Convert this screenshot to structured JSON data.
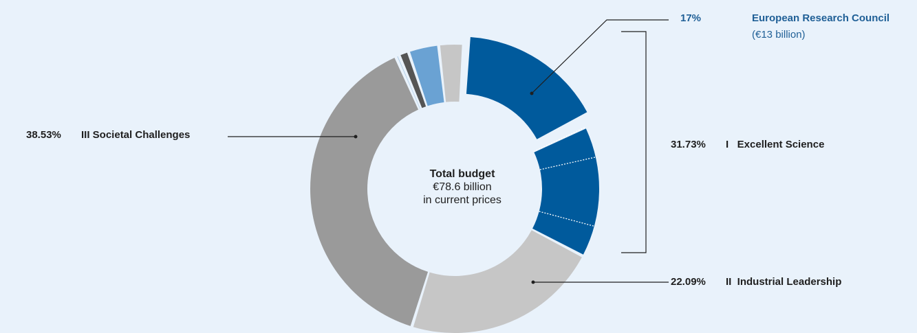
{
  "colors": {
    "background": "#e9f2fb",
    "excellent_science": "#005a9c",
    "industrial_leadership": "#c6c6c6",
    "societal_challenges": "#9a9a9a",
    "light_blue": "#6aa2d3",
    "pale_blue": "#a9c9e6",
    "dark_gray": "#555555",
    "callout_blue": "#1f5f96"
  },
  "center": {
    "title": "Total budget",
    "amount": "€78.6 billion",
    "note": "in current prices"
  },
  "labels": {
    "erc": {
      "pct": "17%",
      "name": "European Research Council",
      "sub": "(€13 billion)"
    },
    "excellent": {
      "pct": "31.73%",
      "name": "I   Excellent Science"
    },
    "industrial": {
      "pct": "22.09%",
      "name": "II  Industrial Leadership"
    },
    "societal": {
      "pct": "38.53%",
      "name": "III Societal Challenges"
    }
  },
  "chart_data": {
    "type": "pie",
    "title": "",
    "total": "€78.6 billion",
    "slices": [
      {
        "name": "European Research Council",
        "value": 17.0,
        "color": "#005a9c",
        "exploded": true
      },
      {
        "name": "I Excellent Science (other)",
        "value": 14.73,
        "color": "#005a9c",
        "subdivisions": [
          3.5,
          7.7,
          3.53
        ]
      },
      {
        "name": "II Industrial Leadership",
        "value": 22.09,
        "color": "#c6c6c6"
      },
      {
        "name": "III Societal Challenges",
        "value": 38.53,
        "color": "#9a9a9a"
      },
      {
        "name": "",
        "value": 0.4,
        "color": "#a9c9e6"
      },
      {
        "name": "",
        "value": 1.1,
        "color": "#555555"
      },
      {
        "name": "",
        "value": 3.4,
        "color": "#6aa2d3"
      },
      {
        "name": "",
        "value": 2.75,
        "color": "#c6c6c6"
      }
    ]
  }
}
